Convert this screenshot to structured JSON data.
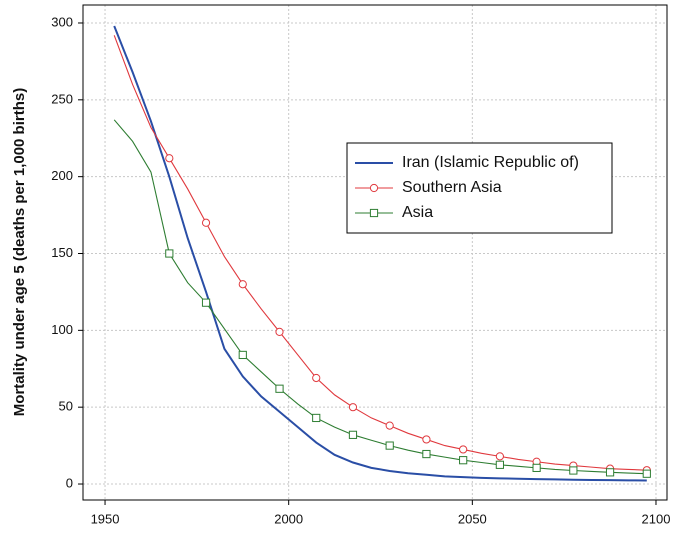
{
  "chart_data": {
    "type": "line",
    "y_label": "Mortality under age 5 (deaths per 1,000 births)",
    "x": [
      1952.5,
      1957.5,
      1962.5,
      1967.5,
      1972.5,
      1977.5,
      1982.5,
      1987.5,
      1992.5,
      1997.5,
      2002.5,
      2007.5,
      2012.5,
      2017.5,
      2022.5,
      2027.5,
      2032.5,
      2037.5,
      2042.5,
      2047.5,
      2052.5,
      2057.5,
      2062.5,
      2067.5,
      2072.5,
      2077.5,
      2082.5,
      2087.5,
      2092.5,
      2097.5
    ],
    "series": [
      {
        "name": "Iran (Islamic Republic of)",
        "color": "#2a4ea6",
        "marker": "none",
        "values": [
          298,
          268,
          236,
          200,
          160,
          125,
          88,
          70,
          57,
          47,
          37,
          27,
          19,
          14,
          10.5,
          8.5,
          7,
          6,
          5,
          4.5,
          4,
          3.7,
          3.4,
          3.2,
          3,
          2.8,
          2.6,
          2.5,
          2.4,
          2.3
        ]
      },
      {
        "name": "Southern Asia",
        "color": "#e0393e",
        "marker": "circle",
        "values": [
          292,
          260,
          232,
          212,
          192,
          170,
          148,
          130,
          114,
          99,
          84,
          69,
          58,
          50,
          43,
          38,
          33,
          29,
          25,
          22.5,
          20,
          18,
          16,
          14.5,
          13,
          12,
          11,
          10,
          9.5,
          9
        ]
      },
      {
        "name": "Asia",
        "color": "#2e7d32",
        "marker": "square",
        "values": [
          237,
          223,
          203,
          150,
          131,
          118,
          101,
          84,
          73,
          62,
          52,
          43,
          37,
          32,
          28.5,
          25,
          22,
          19.5,
          17.5,
          15.5,
          14,
          12.5,
          11.5,
          10.5,
          9.5,
          8.8,
          8.2,
          7.6,
          7.1,
          6.7
        ]
      }
    ],
    "xlim": [
      1944,
      2103
    ],
    "xticks": [
      1950,
      2000,
      2050,
      2100
    ],
    "ylim": [
      -10.4,
      311.7
    ],
    "yticks": [
      0,
      50,
      100,
      150,
      200,
      250,
      300
    ],
    "grid": true,
    "legend": "upper right"
  }
}
